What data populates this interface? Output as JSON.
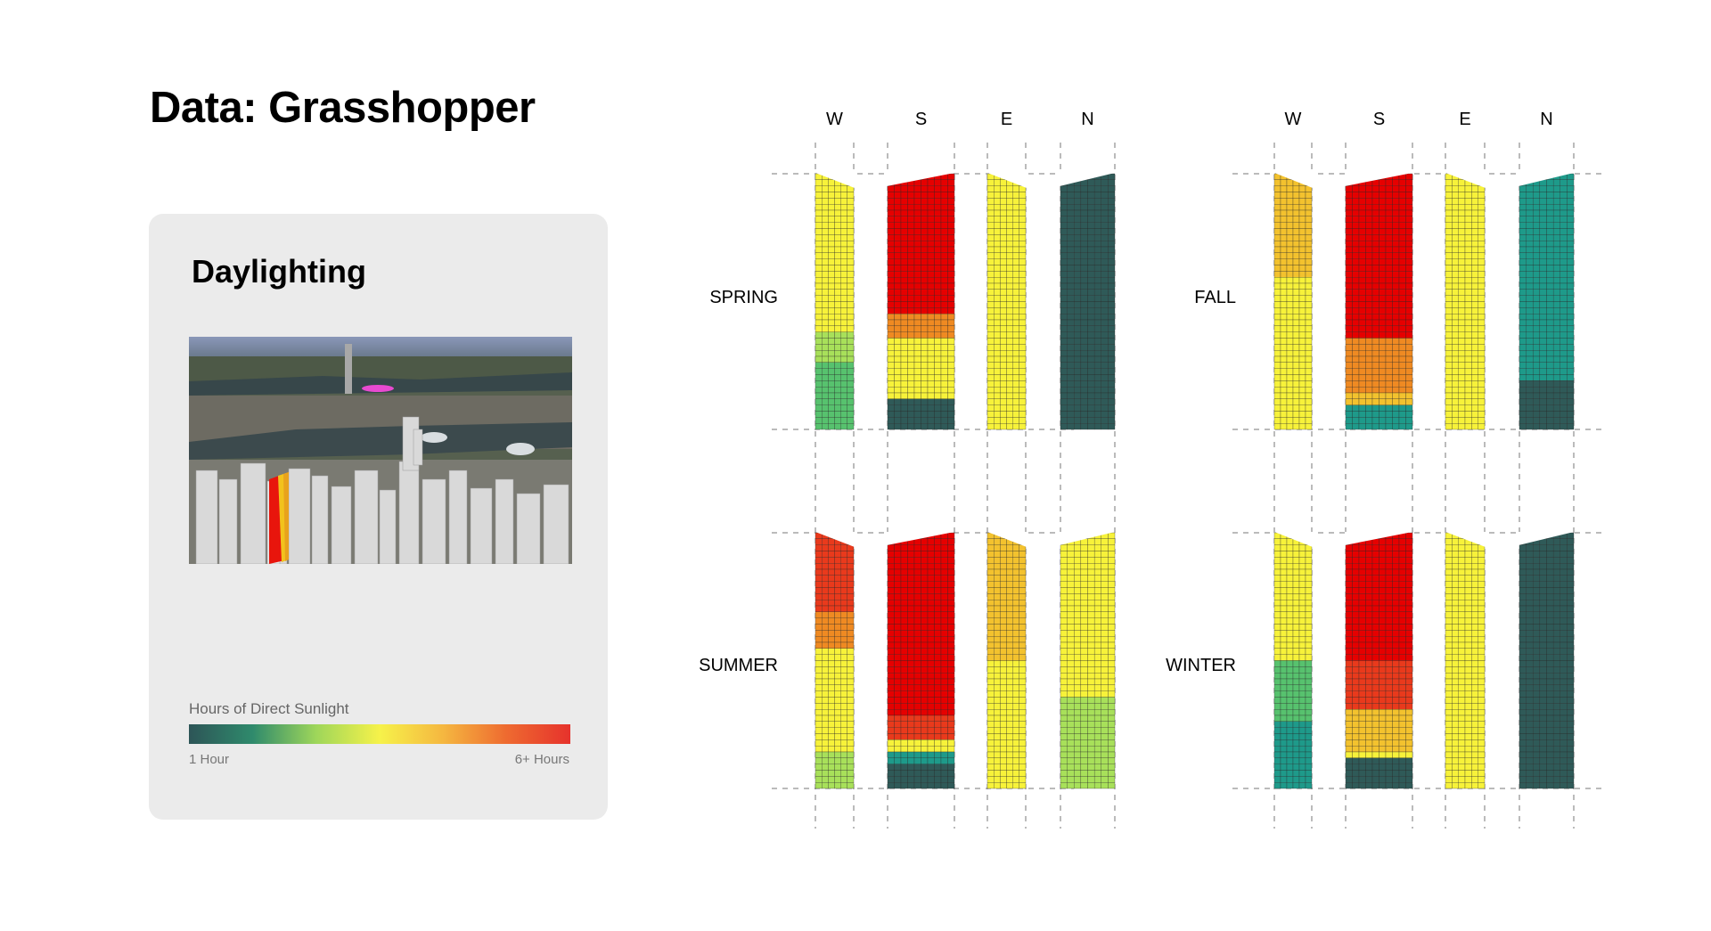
{
  "page": {
    "title": "Data: Grasshopper"
  },
  "card": {
    "title": "Daylighting",
    "legend": {
      "title": "Hours of Direct Sunlight",
      "min_label": "1 Hour",
      "max_label": "6+ Hours",
      "gradient_colors": [
        "#2d5557",
        "#2f8a6c",
        "#9ed65a",
        "#f6f24a",
        "#f5b740",
        "#ee6a30",
        "#e6322c"
      ]
    }
  },
  "facade_labels": [
    "W",
    "S",
    "E",
    "N"
  ],
  "seasons": [
    "SPRING",
    "FALL",
    "SUMMER",
    "WINTER"
  ],
  "colors": {
    "scale": [
      "#2f5a58",
      "#1e9a8a",
      "#57c26e",
      "#a8e05a",
      "#f7f23a",
      "#f3c22e",
      "#ef8a22",
      "#e93a1c",
      "#e60000"
    ]
  }
}
